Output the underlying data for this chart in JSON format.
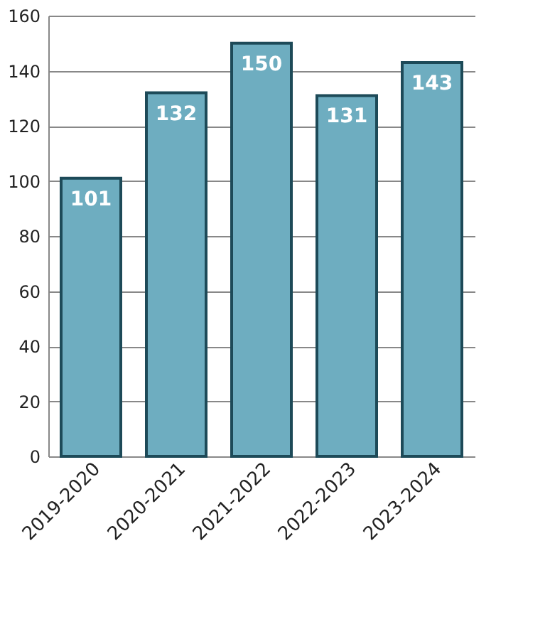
{
  "chart_data": {
    "type": "bar",
    "categories": [
      "2019-2020",
      "2020-2021",
      "2021-2022",
      "2022-2023",
      "2023-2024"
    ],
    "values": [
      101,
      132,
      150,
      131,
      143
    ],
    "color": "#6eadc0",
    "ylim": [
      0,
      160
    ],
    "yticks": [
      0,
      20,
      40,
      60,
      80,
      100,
      120,
      140,
      160
    ],
    "grid": "y",
    "data_labels": true
  }
}
